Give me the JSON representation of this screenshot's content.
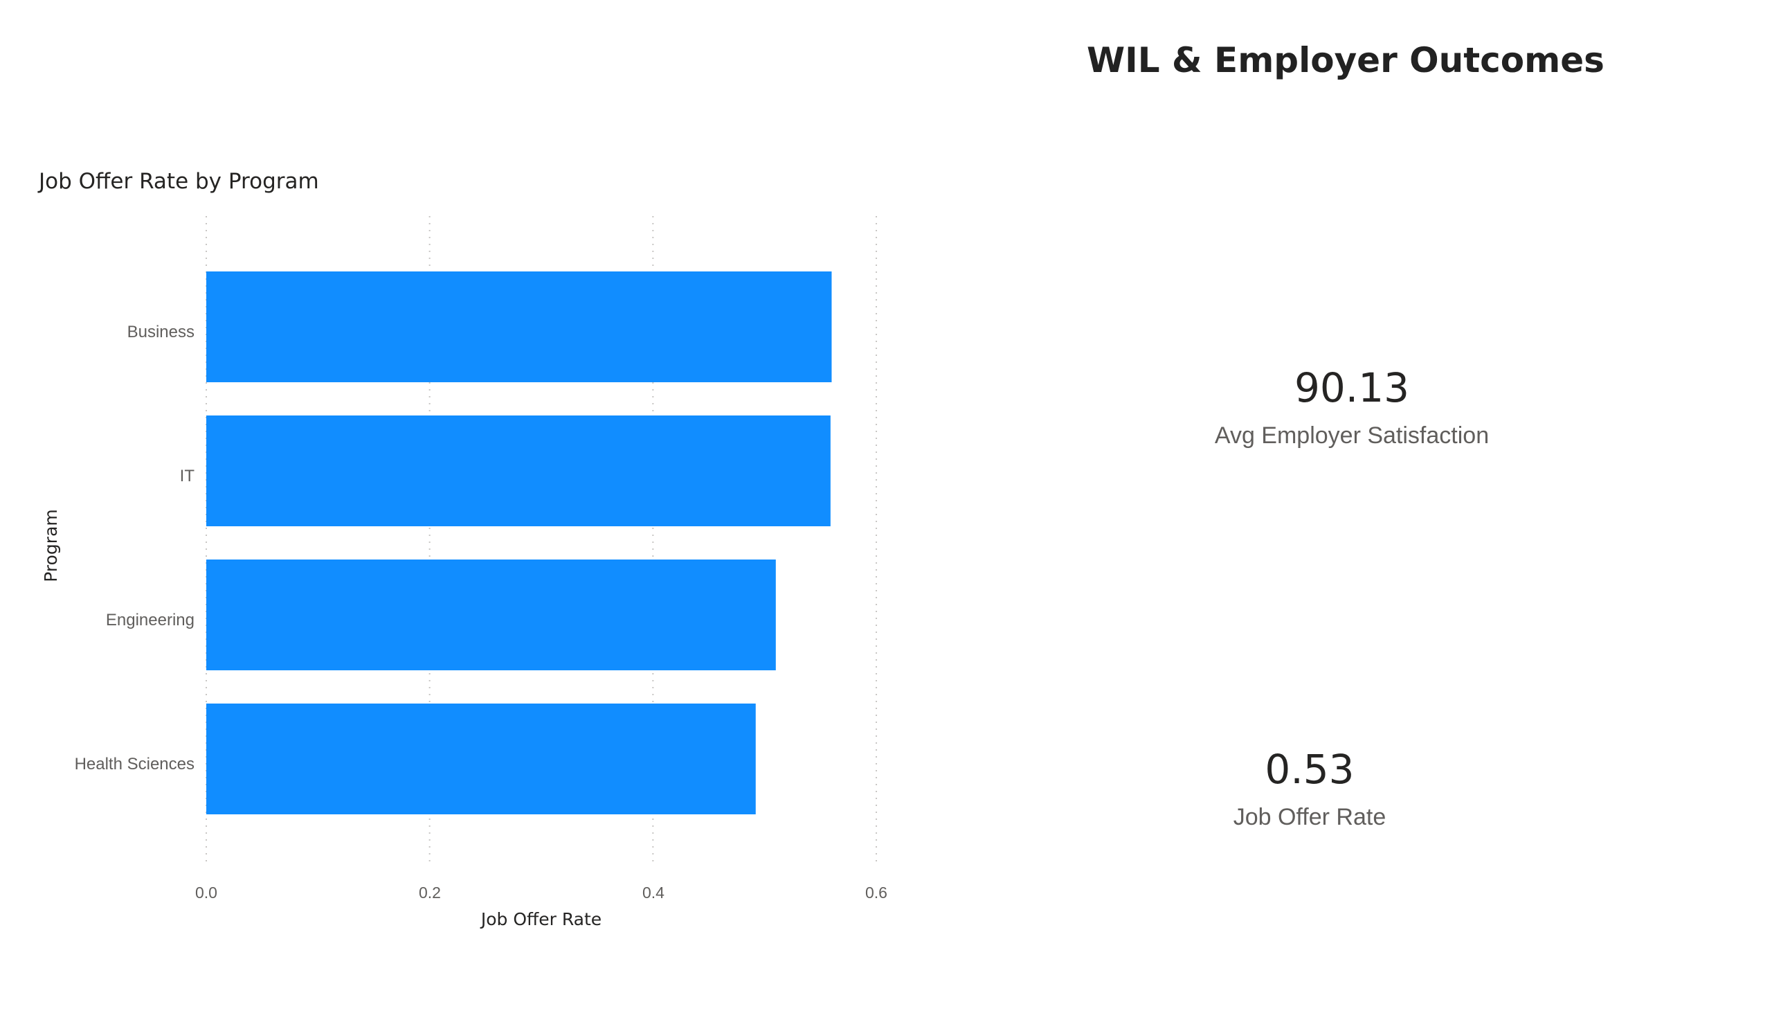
{
  "page": {
    "title": "WIL & Employer Outcomes"
  },
  "chart_data": {
    "type": "bar",
    "orientation": "horizontal",
    "title": "Job Offer Rate by Program",
    "categories": [
      "Business",
      "IT",
      "Engineering",
      "Health Sciences"
    ],
    "values": [
      0.56,
      0.559,
      0.51,
      0.492
    ],
    "xlabel": "Job Offer Rate",
    "ylabel": "Program",
    "xlim": [
      0,
      0.6
    ],
    "xticks": [
      "0.0",
      "0.2",
      "0.4",
      "0.6"
    ],
    "grid": "vertical dotted",
    "bar_color": "#118DFF"
  },
  "kpis": [
    {
      "value": "90.13",
      "label": "Avg Employer Satisfaction"
    },
    {
      "value": "0.53",
      "label": "Job Offer Rate"
    }
  ]
}
